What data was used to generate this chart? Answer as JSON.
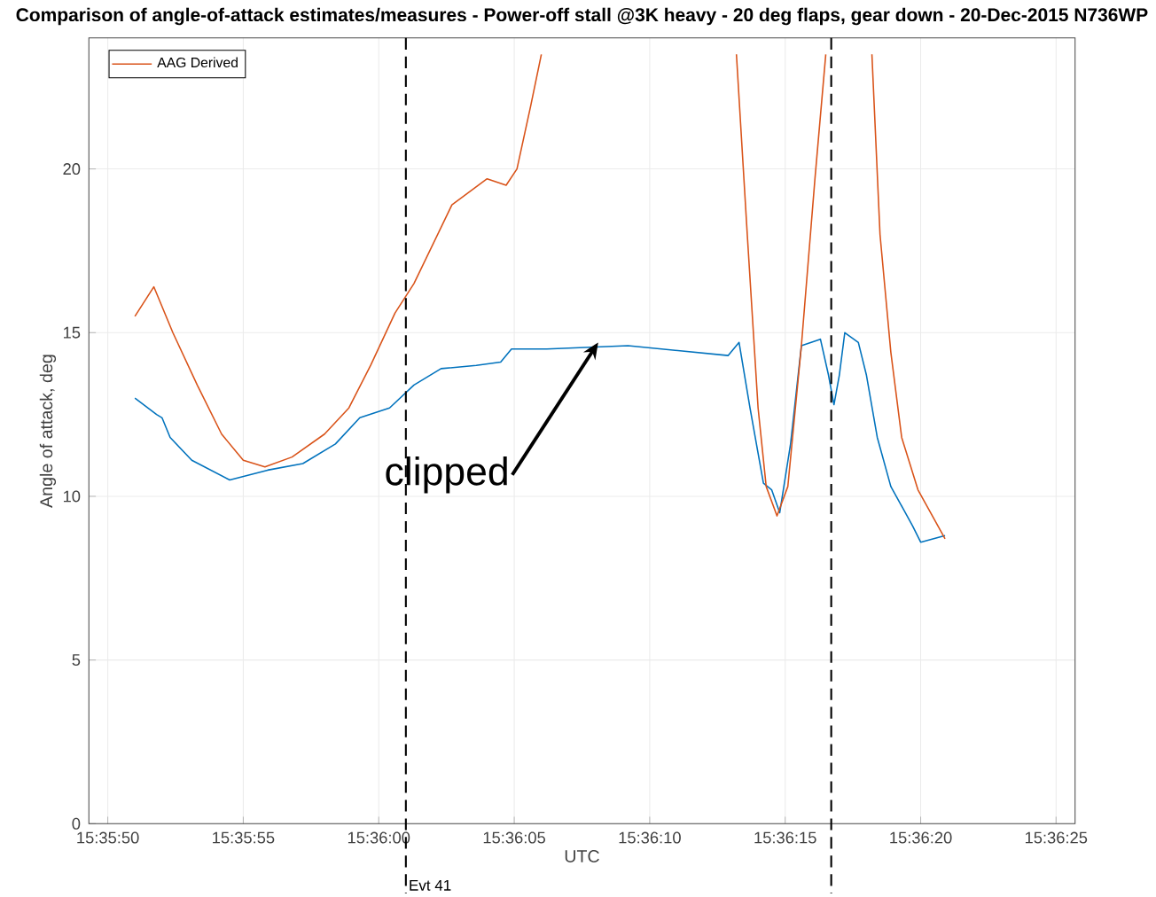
{
  "chart_data": {
    "type": "line",
    "title": "Comparison of angle-of-attack estimates/measures - Power-off stall @3K heavy - 20 deg flaps, gear down - 20-Dec-2015 N736WP",
    "xlabel": "UTC",
    "ylabel": "Angle of attack, deg",
    "xlim": [
      15.597028,
      15.607139
    ],
    "ylim": [
      0,
      24
    ],
    "xticks": [
      {
        "value": 15.597222,
        "label": "15:35:50"
      },
      {
        "value": 15.598611,
        "label": "15:35:55"
      },
      {
        "value": 15.6,
        "label": "15:36:00"
      },
      {
        "value": 15.601389,
        "label": "15:36:05"
      },
      {
        "value": 15.602778,
        "label": "15:36:10"
      },
      {
        "value": 15.604167,
        "label": "15:36:15"
      },
      {
        "value": 15.605556,
        "label": "15:36:20"
      },
      {
        "value": 15.606944,
        "label": "15:36:25"
      }
    ],
    "yticks": [
      0,
      5,
      10,
      15,
      20
    ],
    "grid": true,
    "legend": "top left",
    "marker": "none",
    "line_style": "solid",
    "series": [
      {
        "color": "#0072bd",
        "x": [
          15.5975,
          15.597722,
          15.597778,
          15.597861,
          15.598083,
          15.598472,
          15.598861,
          15.599222,
          15.599556,
          15.599806,
          15.600111,
          15.600361,
          15.600639,
          15.601,
          15.60125,
          15.601361,
          15.601722,
          15.602556,
          15.603583,
          15.603694,
          15.603806,
          15.603944,
          15.604028,
          15.604111,
          15.604222,
          15.604333,
          15.604528,
          15.604611,
          15.604667,
          15.604722,
          15.604778,
          15.604917,
          15.605,
          15.605111,
          15.60525,
          15.605417,
          15.605472,
          15.605556,
          15.605806
        ],
        "values": [
          13.0,
          12.5,
          12.4,
          11.8,
          11.1,
          10.5,
          10.8,
          11.0,
          11.6,
          12.4,
          12.7,
          13.4,
          13.9,
          14.0,
          14.1,
          14.5,
          14.5,
          14.6,
          14.3,
          14.7,
          12.7,
          10.4,
          10.2,
          9.5,
          11.6,
          14.6,
          14.8,
          13.7,
          12.8,
          13.7,
          15.0,
          14.7,
          13.7,
          11.8,
          10.3,
          9.4,
          9.1,
          8.6,
          8.8
        ]
      },
      {
        "name": "AAG Derived",
        "color": "#d95319",
        "x": [
          15.5975,
          15.597694,
          15.597889,
          15.598139,
          15.598389,
          15.598611,
          15.598833,
          15.599111,
          15.599444,
          15.599694,
          15.599917,
          15.600167,
          15.600361,
          15.60075,
          15.601111,
          15.601306,
          15.601417,
          15.601556,
          15.601667,
          15.6027,
          15.603667,
          15.603778,
          15.603889,
          15.603972,
          15.604083,
          15.604194,
          15.604333,
          15.604472,
          15.604583,
          15.6048,
          15.605056,
          15.605139,
          15.60525,
          15.605361,
          15.605528,
          15.605806
        ],
        "values": [
          15.5,
          16.4,
          15.0,
          13.4,
          11.9,
          11.1,
          10.9,
          11.2,
          11.9,
          12.7,
          14.0,
          15.6,
          16.5,
          18.9,
          19.7,
          19.5,
          20.0,
          21.9,
          23.5,
          null,
          23.5,
          18.0,
          12.7,
          10.3,
          9.4,
          10.3,
          14.6,
          19.7,
          23.5,
          null,
          23.5,
          18.0,
          14.4,
          11.8,
          10.2,
          8.7
        ]
      }
    ],
    "ref_lines": [
      {
        "axis": "x",
        "value": 15.600278,
        "label": "Evt 41",
        "color": "#000000",
        "line_style": "dashed"
      },
      {
        "axis": "x",
        "value": 15.604639,
        "color": "#000000",
        "line_style": "dashed"
      }
    ],
    "annotations": [
      {
        "text": "clipped",
        "x": 15.60225,
        "y": 14.7
      }
    ]
  }
}
